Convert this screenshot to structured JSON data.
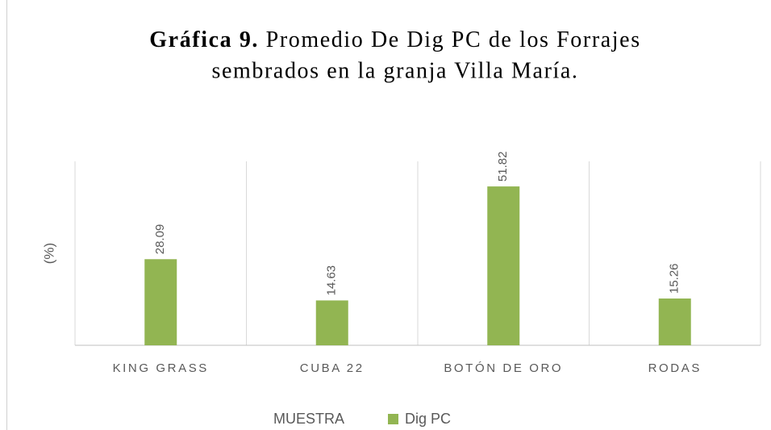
{
  "chart_data": {
    "type": "bar",
    "title_number": "Gráfica 9.",
    "title": [
      "Promedio De Dig PC de los  Forrajes",
      "sembrados en la granja Villa María."
    ],
    "x_label": "MUESTRA",
    "y_label": "(%)",
    "categories": [
      "KING GRASS",
      "CUBA 22",
      "BOTÓN DE ORO",
      "RODAS"
    ],
    "series": [
      {
        "name": "Dig PC",
        "color": "#92b552",
        "values": [
          28.09,
          14.63,
          51.82,
          15.26
        ]
      }
    ],
    "ylim": [
      0,
      60
    ]
  }
}
